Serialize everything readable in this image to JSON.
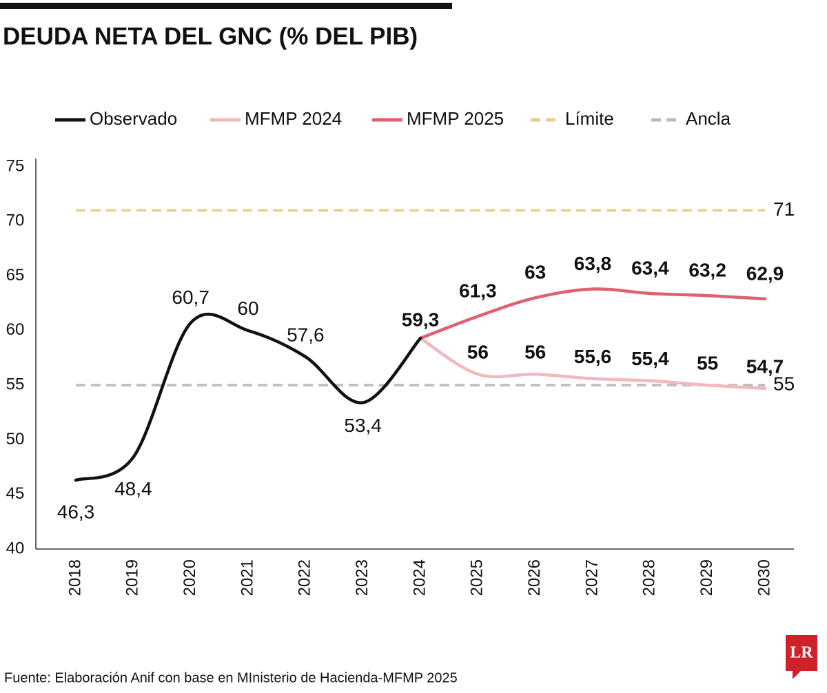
{
  "chart_data": {
    "type": "line",
    "title": "DEUDA NETA DEL GNC (% DEL PIB)",
    "categories": [
      "2018",
      "2019",
      "2020",
      "2021",
      "2022",
      "2023",
      "2024",
      "2025",
      "2026",
      "2027",
      "2028",
      "2029",
      "2030"
    ],
    "series": [
      {
        "name": "Observado",
        "color": "#111111",
        "dash": false,
        "values": [
          46.3,
          48.4,
          60.7,
          60,
          57.6,
          53.4,
          59.3,
          null,
          null,
          null,
          null,
          null,
          null
        ],
        "value_labels": [
          "46,3",
          "48,4",
          "60,7",
          "60",
          "57,6",
          "53,4",
          "59,3",
          null,
          null,
          null,
          null,
          null,
          null
        ]
      },
      {
        "name": "MFMP 2024",
        "color": "#f2b8bd",
        "dash": false,
        "values": [
          null,
          null,
          null,
          null,
          null,
          null,
          59.3,
          56,
          56,
          55.6,
          55.4,
          55,
          54.7
        ],
        "value_labels": [
          null,
          null,
          null,
          null,
          null,
          null,
          null,
          "56",
          "56",
          "55,6",
          "55,4",
          "55",
          "54,7"
        ]
      },
      {
        "name": "MFMP 2025",
        "color": "#e06070",
        "dash": false,
        "values": [
          null,
          null,
          null,
          null,
          null,
          null,
          59.3,
          61.3,
          63,
          63.8,
          63.4,
          63.2,
          62.9
        ],
        "value_labels": [
          null,
          null,
          null,
          null,
          null,
          null,
          null,
          "61,3",
          "63",
          "63,8",
          "63,4",
          "63,2",
          "62,9"
        ]
      },
      {
        "name": "Límite",
        "color": "#e8cc8a",
        "dash": true,
        "values": [
          71,
          71,
          71,
          71,
          71,
          71,
          71,
          71,
          71,
          71,
          71,
          71,
          71
        ],
        "value_labels": [
          null,
          null,
          null,
          null,
          null,
          null,
          null,
          null,
          null,
          null,
          null,
          null,
          "71"
        ]
      },
      {
        "name": "Ancla",
        "color": "#bbbbbb",
        "dash": true,
        "values": [
          55,
          55,
          55,
          55,
          55,
          55,
          55,
          55,
          55,
          55,
          55,
          55,
          55
        ],
        "value_labels": [
          null,
          null,
          null,
          null,
          null,
          null,
          null,
          null,
          null,
          null,
          null,
          null,
          "55"
        ]
      }
    ],
    "ylim": [
      40,
      75
    ],
    "yticks": [
      40,
      45,
      50,
      55,
      60,
      65,
      70,
      75
    ],
    "grid": false,
    "legend": "top"
  },
  "source": "Fuente: Elaboración Anif con base en MInisterio de Hacienda-MFMP 2025",
  "logo": "LR"
}
